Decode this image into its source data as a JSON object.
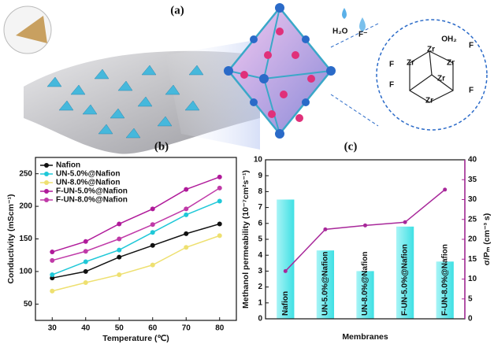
{
  "figure": {
    "panel_labels": [
      "(a)",
      "(b)",
      "(c)"
    ],
    "water": "H₂O",
    "fluoride": "F⁻",
    "cluster_labels": [
      "Zr",
      "Zr",
      "Zr",
      "Zr",
      "Zr",
      "F",
      "F",
      "F",
      "F",
      "OH₂"
    ]
  },
  "chart_data": [
    {
      "type": "line",
      "x_label": "Temperature (℃)",
      "y_label": "Conductivity (mScm⁻¹)",
      "x": [
        30,
        40,
        50,
        60,
        70,
        80
      ],
      "xlim": [
        25,
        85
      ],
      "xticks": [
        30,
        40,
        50,
        60,
        70,
        80
      ],
      "ylim": [
        25,
        275
      ],
      "yticks": [
        50,
        100,
        150,
        200,
        250
      ],
      "legend": "upper-left",
      "series": [
        {
          "name": "Nafion",
          "color": "#111111",
          "values": [
            90,
            100,
            122,
            140,
            158,
            173
          ]
        },
        {
          "name": "UN-5.0%@Nafion",
          "color": "#1fc8d8",
          "values": [
            95,
            115,
            133,
            160,
            187,
            208
          ]
        },
        {
          "name": "UN-8.0%@Nafion",
          "color": "#eee070",
          "values": [
            70,
            83,
            95,
            110,
            137,
            155
          ]
        },
        {
          "name": "F-UN-5.0%@Nafion",
          "color": "#b01a9a",
          "values": [
            130,
            146,
            173,
            196,
            226,
            245
          ]
        },
        {
          "name": "F-UN-8.0%@Nafion",
          "color": "#c03aa8",
          "values": [
            117,
            131,
            150,
            172,
            196,
            228
          ]
        }
      ]
    },
    {
      "type": "combo",
      "x_label": "Membranes",
      "y_label": "Methanol permeability (10⁻⁷cm²s⁻¹)",
      "y2_label": "σ/Pₘ (cm⁻³ s)",
      "categories": [
        "Nafion",
        "UN-5.0%@Nafion",
        "UN-8.0%@Nafion",
        "F-UN-5.0%@Nafion",
        "F-UN-8.0%@Nafion"
      ],
      "ylim": [
        0,
        10
      ],
      "yticks": [
        0,
        1,
        2,
        3,
        4,
        5,
        6,
        7,
        8,
        9,
        10
      ],
      "y2lim": [
        0,
        40
      ],
      "y2ticks": [
        0,
        5,
        10,
        15,
        20,
        25,
        30,
        35,
        40
      ],
      "series": [
        {
          "color": "#3fe0e4",
          "values": [
            7.5,
            4.3,
            3.0,
            5.8,
            3.6
          ]
        },
        {
          "color": "#a8289a",
          "axis": "y2",
          "values": [
            12,
            22.5,
            23.5,
            24.3,
            32.5
          ]
        }
      ]
    }
  ]
}
